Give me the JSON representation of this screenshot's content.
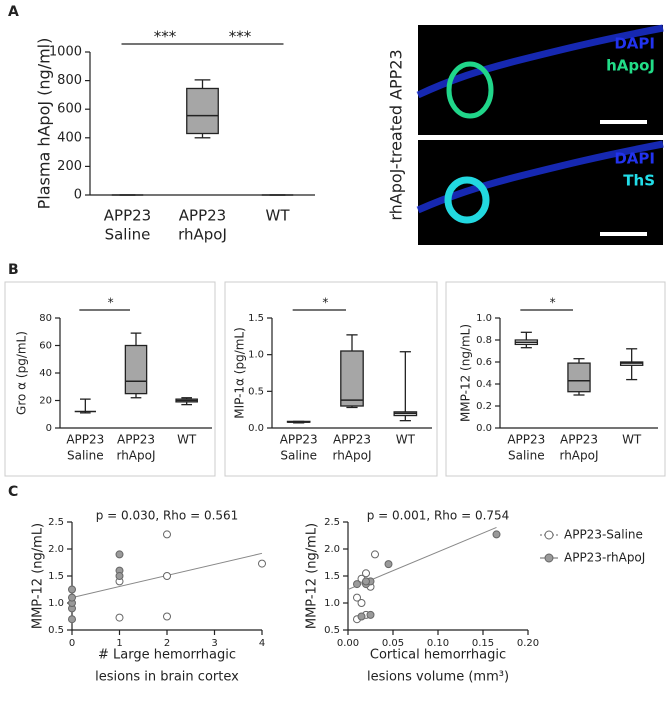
{
  "panel_labels": [
    "A",
    "B",
    "C"
  ],
  "micrograph": {
    "label": "rhApoJ-treated APP23",
    "panels": [
      {
        "stain1": "DAPI",
        "stain2": "hApoJ"
      },
      {
        "stain1": "DAPI",
        "stain2": "ThS"
      }
    ]
  },
  "chart_data": [
    {
      "type": "box",
      "ylabel": "Plasma hApoJ (ng/ml)",
      "categories": [
        [
          "APP23",
          "Saline"
        ],
        [
          "APP23",
          "rhApoJ"
        ],
        [
          "WT"
        ]
      ],
      "boxes": [
        {
          "min": 0,
          "q1": 0,
          "median": 0,
          "q3": 0,
          "max": 0
        },
        {
          "min": 400,
          "q1": 430,
          "median": 555,
          "q3": 745,
          "max": 805
        },
        {
          "min": 0,
          "q1": 0,
          "median": 0,
          "q3": 0,
          "max": 0
        }
      ],
      "box_colors": [
        "#ffffff",
        "#a6a6a6",
        "#ffffff"
      ],
      "annotations": [
        "***",
        "***"
      ],
      "ylim": [
        0,
        1000
      ],
      "yticks": [
        0,
        200,
        400,
        600,
        800,
        1000
      ]
    },
    {
      "type": "box",
      "ylabel": "Gro α (pg/mL)",
      "categories": [
        [
          "APP23",
          "Saline"
        ],
        [
          "APP23",
          "rhApoJ"
        ],
        [
          "WT"
        ]
      ],
      "boxes": [
        {
          "min": 11,
          "q1": 12,
          "median": 12,
          "q3": 12,
          "max": 21
        },
        {
          "min": 22,
          "q1": 25,
          "median": 34,
          "q3": 60,
          "max": 69
        },
        {
          "min": 17,
          "q1": 19,
          "median": 20,
          "q3": 21,
          "max": 22
        }
      ],
      "box_colors": [
        "#ffffff",
        "#a6a6a6",
        "#ffffff"
      ],
      "annotations": [
        "*"
      ],
      "ylim": [
        0,
        80
      ],
      "yticks": [
        0,
        20,
        40,
        60,
        80
      ]
    },
    {
      "type": "box",
      "ylabel": "MIP-1α (pg/mL)",
      "categories": [
        [
          "APP23",
          "Saline"
        ],
        [
          "APP23",
          "rhApoJ"
        ],
        [
          "WT"
        ]
      ],
      "boxes": [
        {
          "min": 0.07,
          "q1": 0.08,
          "median": 0.08,
          "q3": 0.09,
          "max": 0.09
        },
        {
          "min": 0.28,
          "q1": 0.3,
          "median": 0.38,
          "q3": 1.05,
          "max": 1.27
        },
        {
          "min": 0.1,
          "q1": 0.17,
          "median": 0.2,
          "q3": 0.22,
          "max": 1.04
        }
      ],
      "box_colors": [
        "#ffffff",
        "#a6a6a6",
        "#ffffff"
      ],
      "annotations": [
        "*"
      ],
      "ylim": [
        0,
        1.5
      ],
      "yticks": [
        {
          "value": 0,
          "label": "0.0"
        },
        {
          "value": 0.5,
          "label": "0.5"
        },
        {
          "value": 1,
          "label": "1.0"
        },
        {
          "value": 1.5,
          "label": "1.5"
        }
      ]
    },
    {
      "type": "box",
      "ylabel": "MMP-12 (ng/mL)",
      "categories": [
        [
          "APP23",
          "Saline"
        ],
        [
          "APP23",
          "rhApoJ"
        ],
        [
          "WT"
        ]
      ],
      "boxes": [
        {
          "min": 0.73,
          "q1": 0.76,
          "median": 0.78,
          "q3": 0.8,
          "max": 0.87
        },
        {
          "min": 0.3,
          "q1": 0.33,
          "median": 0.43,
          "q3": 0.59,
          "max": 0.63
        },
        {
          "min": 0.44,
          "q1": 0.57,
          "median": 0.59,
          "q3": 0.6,
          "max": 0.72
        }
      ],
      "box_colors": [
        "#ffffff",
        "#a6a6a6",
        "#ffffff"
      ],
      "annotations": [
        "*"
      ],
      "ylim": [
        0,
        1
      ],
      "yticks": [
        {
          "value": 0,
          "label": "0.0"
        },
        {
          "value": 0.2,
          "label": "0.2"
        },
        {
          "value": 0.4,
          "label": "0.4"
        },
        {
          "value": 0.6,
          "label": "0.6"
        },
        {
          "value": 0.8,
          "label": "0.8"
        },
        {
          "value": 1,
          "label": "1.0"
        }
      ]
    },
    {
      "type": "scatter",
      "title": "p = 0.030, Rho = 0.561",
      "ylabel": "MMP-12 (ng/mL)",
      "xlabel": [
        "# Large hemorrhagic",
        "lesions in brain cortex"
      ],
      "series": [
        {
          "name": "APP23-Saline",
          "color": "#ffffff",
          "x": [
            1,
            1,
            2,
            2,
            2,
            4
          ],
          "y": [
            0.73,
            1.4,
            2.27,
            1.5,
            0.75,
            1.73
          ]
        },
        {
          "name": "APP23-rhApoJ",
          "color": "#9a9a9a",
          "x": [
            0,
            0,
            0,
            0,
            0,
            1,
            1,
            1
          ],
          "y": [
            0.7,
            0.9,
            1.0,
            1.1,
            1.25,
            1.9,
            1.6,
            1.5
          ]
        }
      ],
      "trendline": {
        "x": [
          0,
          4
        ],
        "y": [
          1.1,
          1.92
        ]
      },
      "xlim": [
        0,
        4
      ],
      "xticks": [
        0,
        1,
        2,
        3,
        4
      ],
      "ylim": [
        0.5,
        2.5
      ],
      "yticks": [
        {
          "value": 0.5,
          "label": "0.5"
        },
        {
          "value": 1,
          "label": "1.0"
        },
        {
          "value": 1.5,
          "label": "1.5"
        },
        {
          "value": 2,
          "label": "2.0"
        },
        {
          "value": 2.5,
          "label": "2.5"
        }
      ]
    },
    {
      "type": "scatter",
      "title": "p = 0.001, Rho = 0.754",
      "ylabel": "MMP-12 (ng/mL)",
      "xlabel": [
        "Cortical hemorrhagic",
        "lesions volume (mm³)"
      ],
      "series": [
        {
          "name": "APP23-Saline",
          "color": "#ffffff",
          "x": [
            0.01,
            0.015,
            0.01,
            0.02,
            0.03,
            0.025,
            0.02,
            0.015
          ],
          "y": [
            0.7,
            1.0,
            1.1,
            1.55,
            1.9,
            1.3,
            0.78,
            1.45
          ]
        },
        {
          "name": "APP23-rhApoJ",
          "color": "#9a9a9a",
          "x": [
            0.015,
            0.02,
            0.025,
            0.02,
            0.045,
            0.165,
            0.01,
            0.025
          ],
          "y": [
            0.75,
            1.35,
            1.4,
            1.4,
            1.72,
            2.27,
            1.35,
            0.78
          ]
        }
      ],
      "trendline": {
        "x": [
          0,
          0.165
        ],
        "y": [
          1.25,
          2.4
        ]
      },
      "legend": "right",
      "xlim": [
        0,
        0.2
      ],
      "xticks": [
        {
          "value": 0,
          "label": "0.00"
        },
        {
          "value": 0.05,
          "label": "0.05"
        },
        {
          "value": 0.1,
          "label": "0.10"
        },
        {
          "value": 0.15,
          "label": "0.15"
        },
        {
          "value": 0.2,
          "label": "0.20"
        }
      ],
      "ylim": [
        0.5,
        2.5
      ],
      "yticks": [
        {
          "value": 0.5,
          "label": "0.5"
        },
        {
          "value": 1,
          "label": "1.0"
        },
        {
          "value": 1.5,
          "label": "1.5"
        },
        {
          "value": 2,
          "label": "2.0"
        },
        {
          "value": 2.5,
          "label": "2.5"
        }
      ]
    }
  ]
}
